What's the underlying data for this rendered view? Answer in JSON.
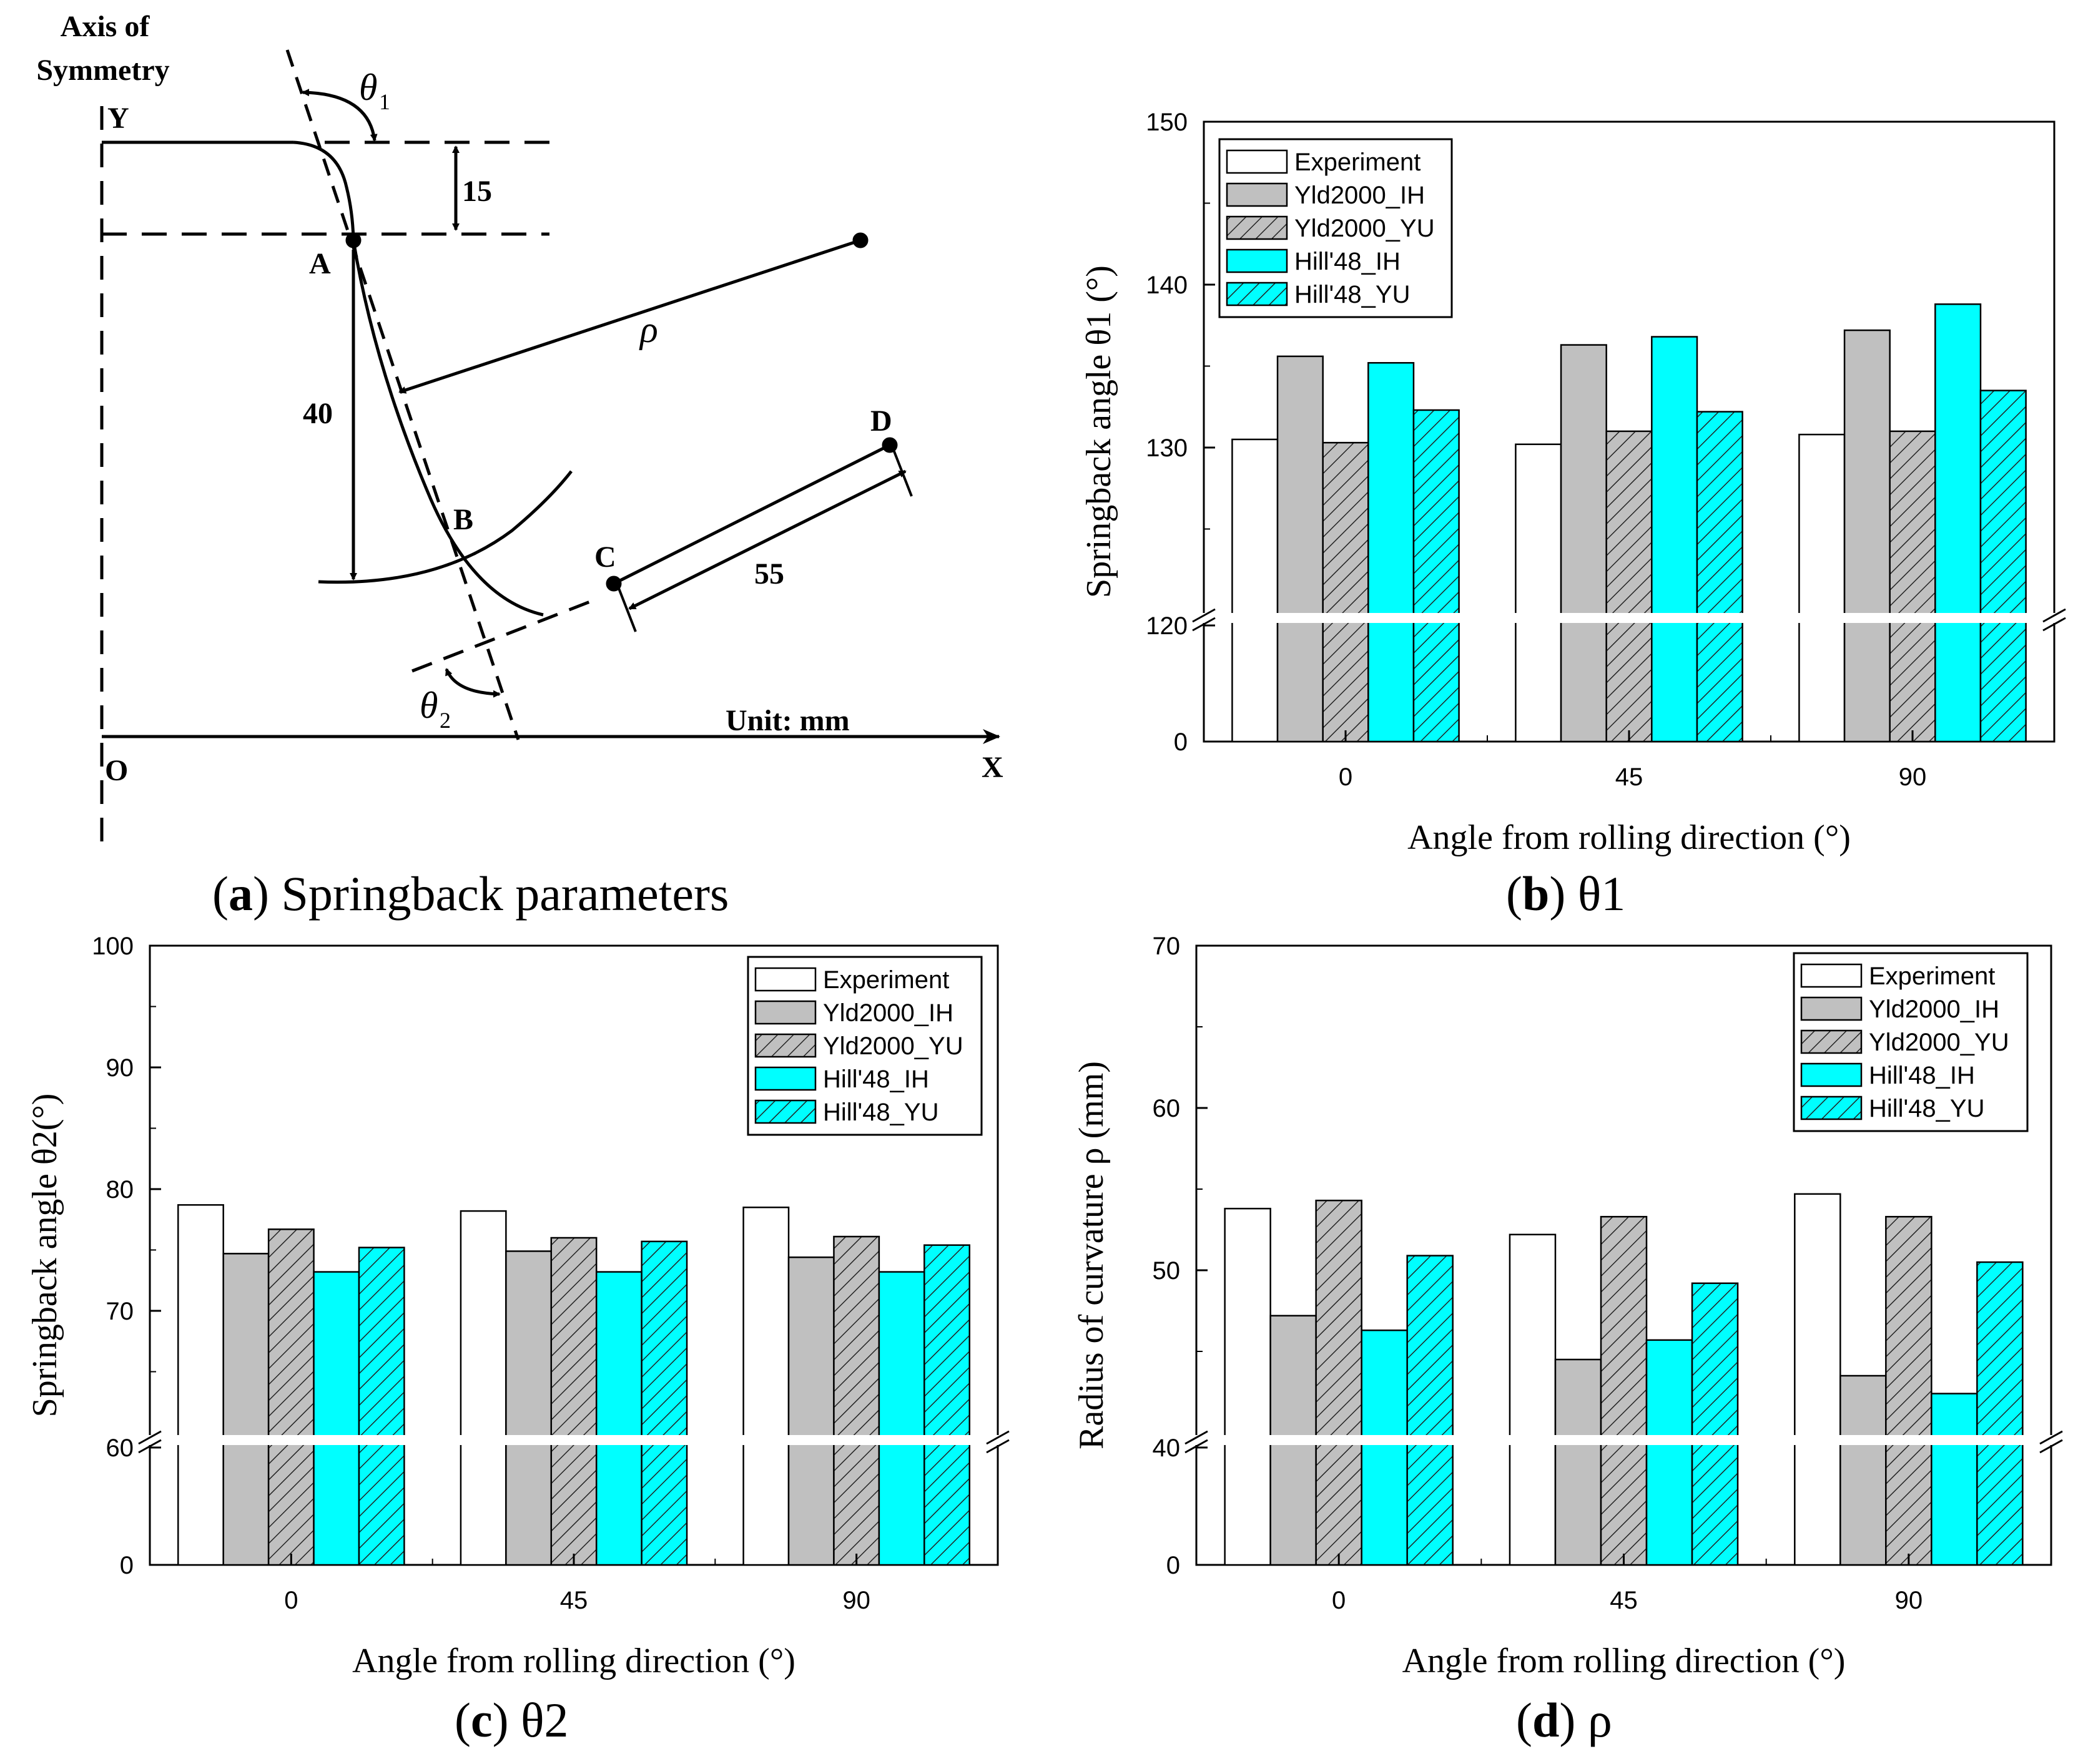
{
  "colors": {
    "experiment": "#ffffff",
    "yld_ih": "#c0c0c0",
    "yld_yu": "#c0c0c0",
    "hill_ih": "#00ffff",
    "hill_yu": "#00ffff",
    "axis": "#000000"
  },
  "diagram": {
    "axis_title_line1": "Axis of",
    "axis_title_line2": "Symmetry",
    "label_y": "Y",
    "label_o": "O",
    "label_x": "X",
    "label_a": "A",
    "label_b": "B",
    "label_c": "C",
    "label_d": "D",
    "dim_15": "15",
    "dim_40": "40",
    "dim_55": "55",
    "theta1_symbol": "θ",
    "theta1_sub": "1",
    "theta2_symbol": "θ",
    "theta2_sub": "2",
    "rho_symbol": "ρ",
    "unit_label": "Unit: mm"
  },
  "captions": {
    "a_letter": "a",
    "a_text": "Springback parameters",
    "b_letter": "b",
    "b_text": "θ1",
    "c_letter": "c",
    "c_text": "θ2",
    "d_letter": "d",
    "d_text": "ρ"
  },
  "chart_data": [
    {
      "id": "b",
      "type": "bar",
      "title": "θ1",
      "xlabel": "Angle from rolling direction (°)",
      "ylabel": "Springback angle θ1 (°)",
      "categories": [
        "0",
        "45",
        "90"
      ],
      "series": [
        {
          "name": "Experiment",
          "values": [
            130.5,
            130.2,
            130.8
          ]
        },
        {
          "name": "Yld2000_IH",
          "values": [
            135.6,
            136.3,
            137.2
          ]
        },
        {
          "name": "Yld2000_YU",
          "values": [
            130.3,
            131.0,
            131.0
          ]
        },
        {
          "name": "Hill'48_IH",
          "values": [
            135.2,
            136.8,
            138.8
          ]
        },
        {
          "name": "Hill'48_YU",
          "values": [
            132.3,
            132.2,
            133.5
          ]
        }
      ],
      "y_lower_range": [
        0,
        120
      ],
      "y_upper_range": [
        120,
        150
      ],
      "y_lower_ticks": [
        0
      ],
      "y_upper_ticks": [
        120,
        130,
        140,
        150
      ],
      "axis_break_at": 120,
      "legend_position": "top-left"
    },
    {
      "id": "c",
      "type": "bar",
      "title": "θ2",
      "xlabel": "Angle from rolling direction (°)",
      "ylabel": "Springback angle θ2(°)",
      "categories": [
        "0",
        "45",
        "90"
      ],
      "series": [
        {
          "name": "Experiment",
          "values": [
            78.7,
            78.2,
            78.5
          ]
        },
        {
          "name": "Yld2000_IH",
          "values": [
            74.7,
            74.9,
            74.4
          ]
        },
        {
          "name": "Yld2000_YU",
          "values": [
            76.7,
            76.0,
            76.1
          ]
        },
        {
          "name": "Hill'48_IH",
          "values": [
            73.2,
            73.2,
            73.2
          ]
        },
        {
          "name": "Hill'48_YU",
          "values": [
            75.2,
            75.7,
            75.4
          ]
        }
      ],
      "y_lower_range": [
        0,
        60
      ],
      "y_upper_range": [
        60,
        100
      ],
      "y_lower_ticks": [
        0
      ],
      "y_upper_ticks": [
        60,
        70,
        80,
        90,
        100
      ],
      "axis_break_at": 60,
      "legend_position": "top-right"
    },
    {
      "id": "d",
      "type": "bar",
      "title": "ρ",
      "xlabel": "Angle from rolling direction (°)",
      "ylabel": "Radius of curvature ρ (mm)",
      "categories": [
        "0",
        "45",
        "90"
      ],
      "series": [
        {
          "name": "Experiment",
          "values": [
            53.8,
            52.2,
            54.7
          ]
        },
        {
          "name": "Yld2000_IH",
          "values": [
            47.2,
            44.5,
            43.5
          ]
        },
        {
          "name": "Yld2000_YU",
          "values": [
            54.3,
            53.3,
            53.3
          ]
        },
        {
          "name": "Hill'48_IH",
          "values": [
            46.3,
            45.7,
            42.4
          ]
        },
        {
          "name": "Hill'48_YU",
          "values": [
            50.9,
            49.2,
            50.5
          ]
        }
      ],
      "y_lower_range": [
        0,
        40
      ],
      "y_upper_range": [
        40,
        70
      ],
      "y_lower_ticks": [
        0
      ],
      "y_upper_ticks": [
        40,
        50,
        60,
        70
      ],
      "axis_break_at": 40,
      "legend_position": "top-right"
    }
  ]
}
